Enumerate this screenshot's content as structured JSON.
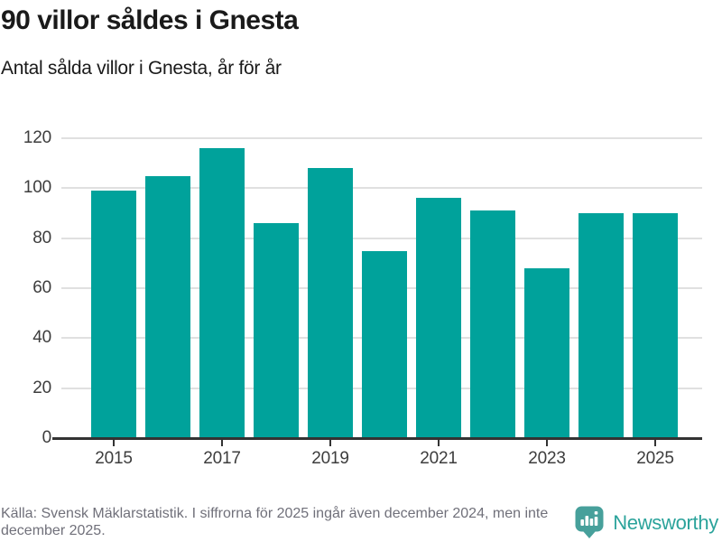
{
  "header": {
    "title": "90 villor såldes i Gnesta",
    "subtitle": "Antal sålda villor i Gnesta, år för år"
  },
  "chart_data": {
    "type": "bar",
    "title": "90 villor såldes i Gnesta",
    "subtitle": "Antal sålda villor i Gnesta, år för år",
    "categories": [
      "2015",
      "2016",
      "2017",
      "2018",
      "2019",
      "2020",
      "2021",
      "2022",
      "2023",
      "2024",
      "2025"
    ],
    "values": [
      99,
      105,
      116,
      86,
      108,
      75,
      96,
      91,
      68,
      90,
      90
    ],
    "xlabel": "",
    "ylabel": "",
    "ylim": [
      0,
      120
    ],
    "yticks": [
      0,
      20,
      40,
      60,
      80,
      100,
      120
    ],
    "xtick_labels": [
      "2015",
      "2017",
      "2019",
      "2021",
      "2023",
      "2025"
    ],
    "grid": true,
    "legend": false,
    "bar_color": "#00a29b"
  },
  "footer": {
    "source": "Källa: Svensk Mäklarstatistik. I siffrorna för 2025 ingår även december 2024, men inte december 2025.",
    "logo_text": "Newsworthy"
  },
  "colors": {
    "bar": "#00a29b",
    "gridline": "#e0e0e0",
    "axis": "#333333",
    "tick_label": "#3d3d3d",
    "title": "#1a1a1a",
    "source_text": "#70707a",
    "logo_bubble": "#47a09b",
    "logo_text": "#2ba39b"
  }
}
